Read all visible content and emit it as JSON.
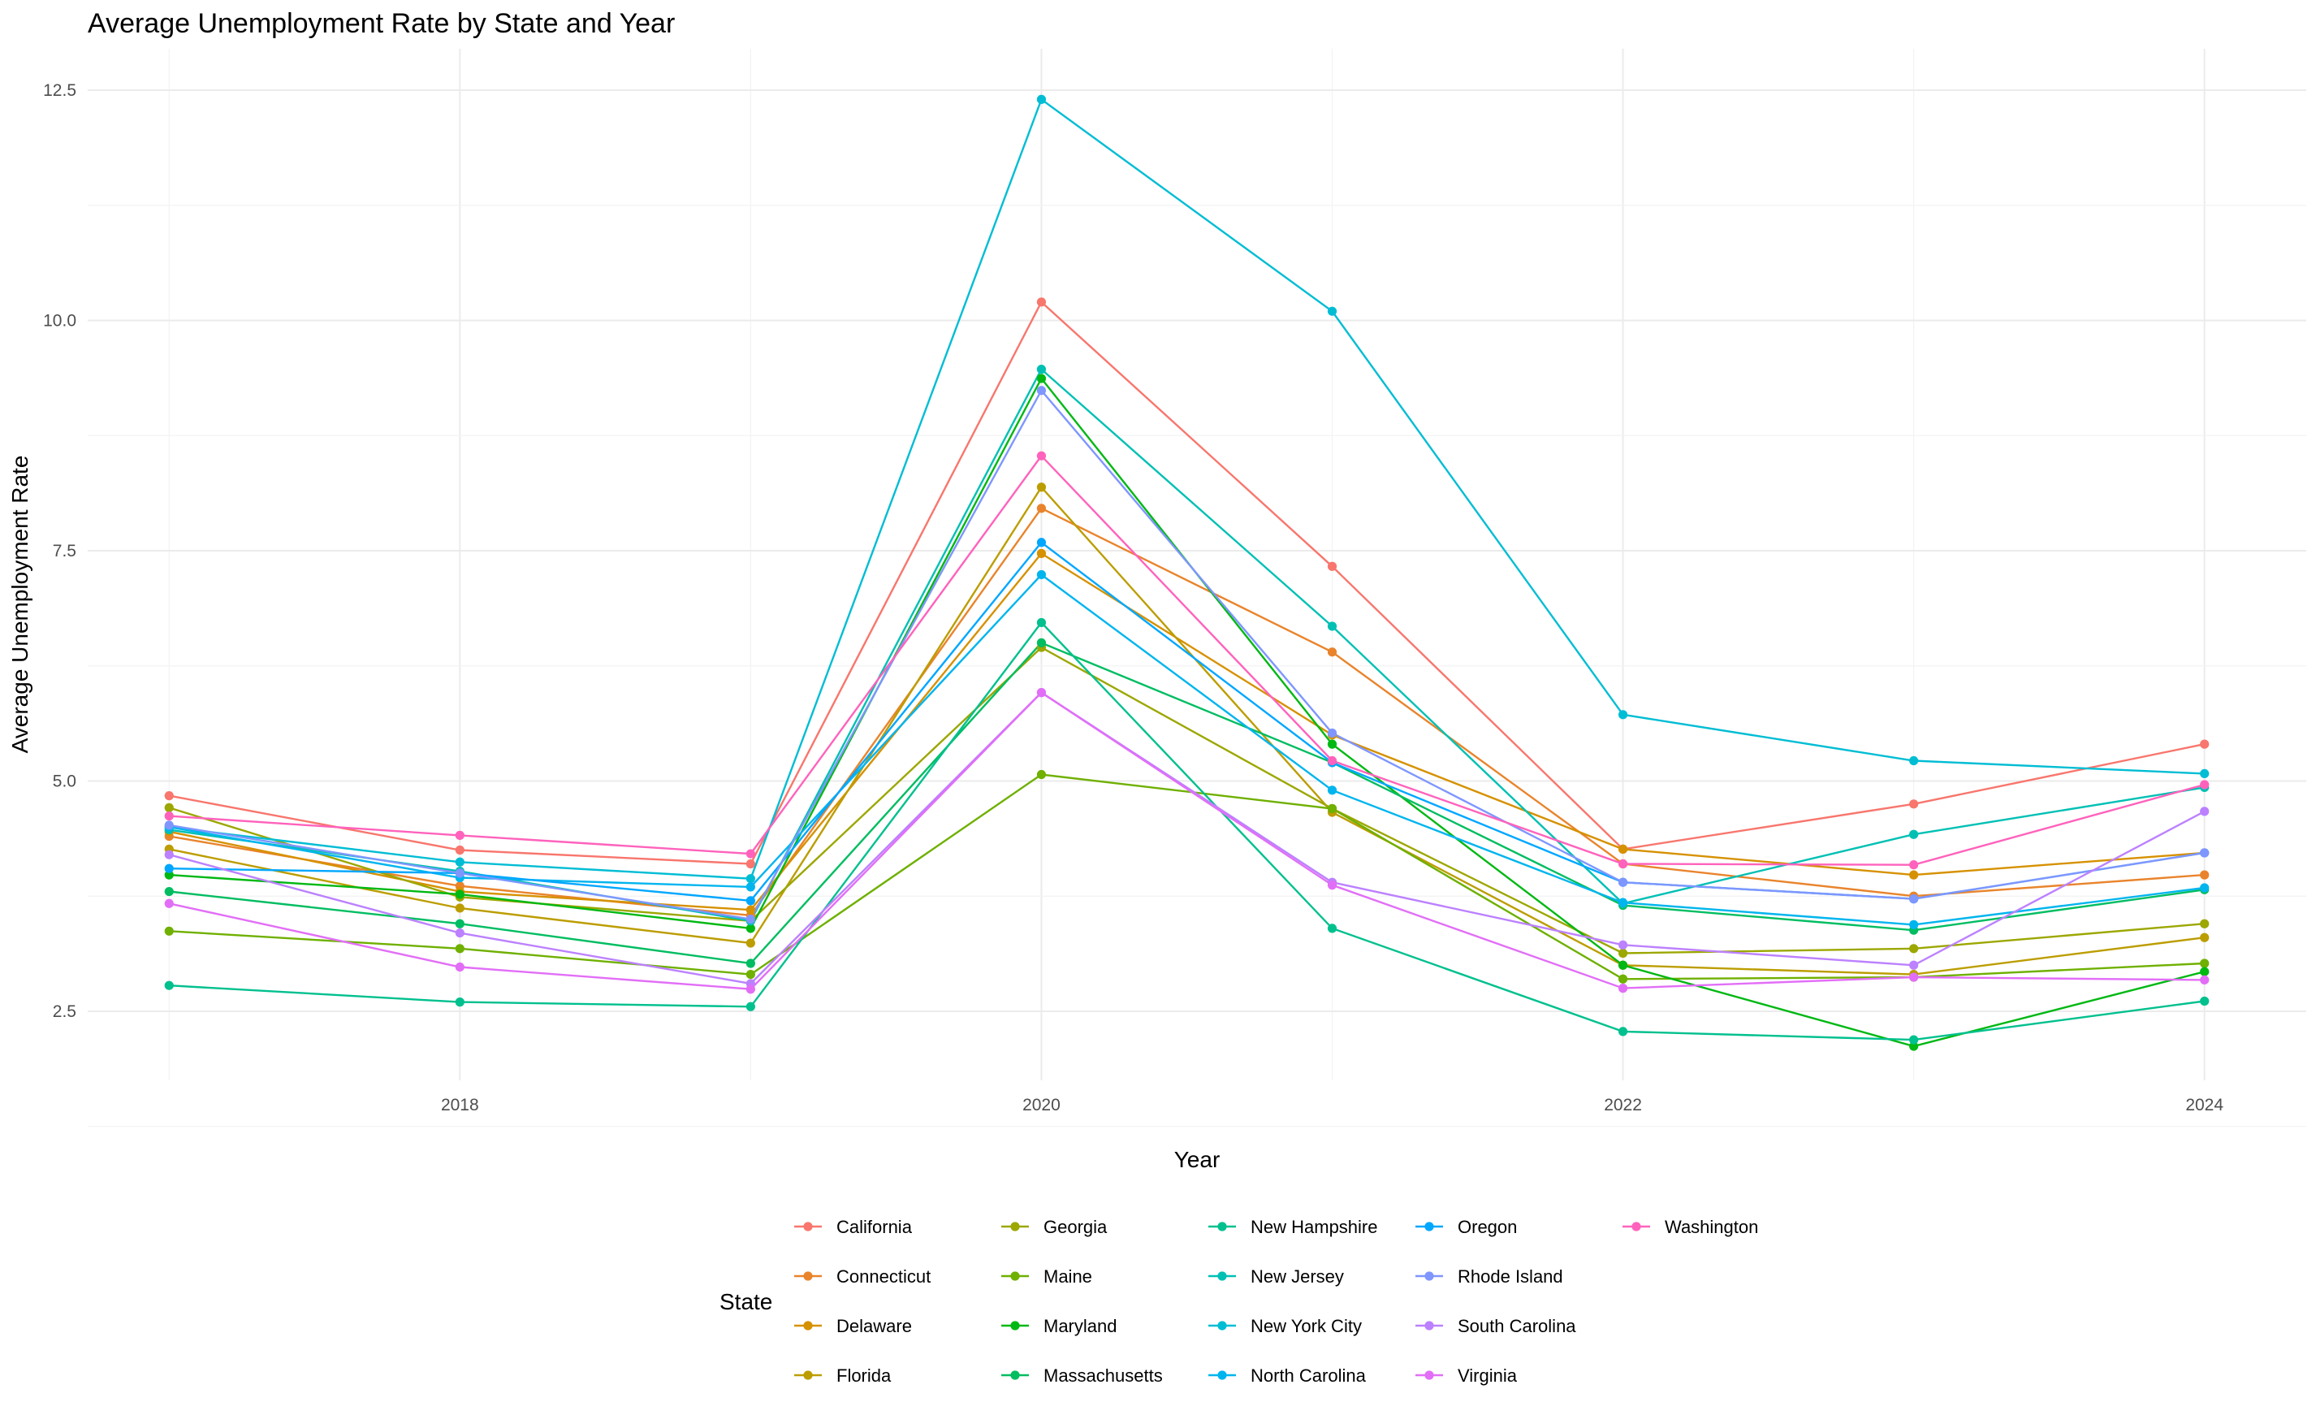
{
  "chart_data": {
    "type": "line",
    "title": "Average Unemployment Rate by State and Year",
    "xlabel": "Year",
    "ylabel": "Average Unemployment Rate",
    "x": [
      2017,
      2018,
      2019,
      2020,
      2021,
      2022,
      2023,
      2024
    ],
    "xlim": [
      2016.72,
      2024.35
    ],
    "ylim": [
      1.75,
      12.95
    ],
    "x_ticks": [
      2018,
      2020,
      2022,
      2024
    ],
    "x_tick_labels": [
      "2018",
      "2020",
      "2022",
      "2024"
    ],
    "y_ticks": [
      2.5,
      5.0,
      7.5,
      10.0,
      12.5
    ],
    "y_tick_labels": [
      "2.5",
      "5.0",
      "7.5",
      "10.0",
      "12.5"
    ],
    "grid": true,
    "legend_title": "State",
    "legend_position": "bottom",
    "series": [
      {
        "name": "California",
        "color": "#F8766D",
        "values": [
          4.84,
          4.25,
          4.1,
          10.2,
          7.33,
          4.26,
          4.75,
          5.4
        ]
      },
      {
        "name": "Connecticut",
        "color": "#E9842C",
        "values": [
          4.4,
          3.86,
          3.54,
          7.96,
          6.4,
          4.1,
          3.75,
          3.98
        ]
      },
      {
        "name": "Delaware",
        "color": "#D69100",
        "values": [
          4.45,
          3.8,
          3.6,
          7.47,
          5.5,
          4.26,
          3.98,
          4.22
        ]
      },
      {
        "name": "Florida",
        "color": "#BC9D00",
        "values": [
          4.26,
          3.62,
          3.24,
          8.19,
          4.66,
          3.0,
          2.9,
          3.3
        ]
      },
      {
        "name": "Georgia",
        "color": "#9CA700",
        "values": [
          4.71,
          3.74,
          3.48,
          6.45,
          4.7,
          3.13,
          3.18,
          3.45
        ]
      },
      {
        "name": "Maine",
        "color": "#6FB000",
        "values": [
          3.37,
          3.18,
          2.9,
          5.07,
          4.7,
          2.85,
          2.87,
          3.02
        ]
      },
      {
        "name": "Maryland",
        "color": "#00B813",
        "values": [
          3.98,
          3.77,
          3.4,
          9.37,
          5.4,
          3.0,
          2.12,
          2.93
        ]
      },
      {
        "name": "Massachusetts",
        "color": "#00BD61",
        "values": [
          3.8,
          3.45,
          3.02,
          6.5,
          5.2,
          3.65,
          3.38,
          3.82
        ]
      },
      {
        "name": "New Hampshire",
        "color": "#00C08E",
        "values": [
          2.78,
          2.6,
          2.55,
          6.72,
          3.4,
          2.28,
          2.19,
          2.61
        ]
      },
      {
        "name": "New Jersey",
        "color": "#00C0B4",
        "values": [
          4.47,
          4.02,
          3.48,
          9.47,
          6.68,
          3.67,
          4.42,
          4.93
        ]
      },
      {
        "name": "New York City",
        "color": "#00BDD4",
        "values": [
          4.5,
          4.12,
          3.94,
          12.4,
          10.1,
          5.72,
          5.22,
          5.08
        ]
      },
      {
        "name": "North Carolina",
        "color": "#00B5EE",
        "values": [
          4.5,
          3.95,
          3.85,
          7.24,
          4.9,
          3.68,
          3.44,
          3.84
        ]
      },
      {
        "name": "Oregon",
        "color": "#00A7FF",
        "values": [
          4.05,
          4.0,
          3.7,
          7.59,
          5.2,
          3.9,
          3.72,
          4.22
        ]
      },
      {
        "name": "Rhode Island",
        "color": "#7F96FF",
        "values": [
          4.52,
          4.0,
          3.5,
          9.24,
          5.52,
          3.9,
          3.72,
          4.22
        ]
      },
      {
        "name": "South Carolina",
        "color": "#BC81FF",
        "values": [
          4.2,
          3.35,
          2.8,
          5.96,
          3.9,
          3.22,
          3.0,
          4.67
        ]
      },
      {
        "name": "Virginia",
        "color": "#E26EF7",
        "values": [
          3.67,
          2.98,
          2.74,
          5.96,
          3.87,
          2.75,
          2.87,
          2.84
        ]
      },
      {
        "name": "Washington",
        "color": "#FF62BC",
        "values": [
          4.62,
          4.41,
          4.21,
          8.53,
          5.22,
          4.1,
          4.09,
          4.96
        ]
      }
    ]
  }
}
